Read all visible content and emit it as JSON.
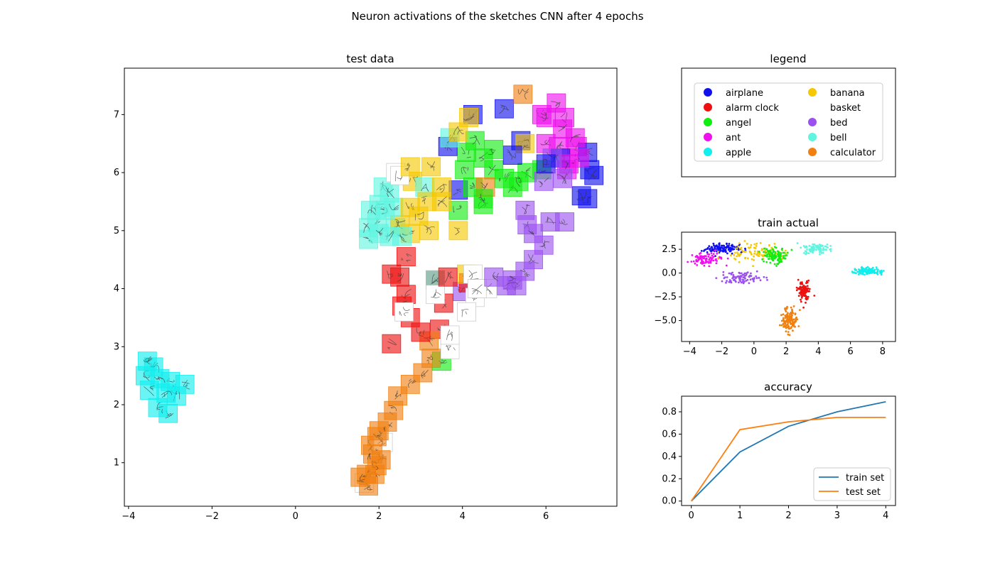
{
  "figure": {
    "title": "Neuron activations of the sketches CNN after 4 epochs"
  },
  "colors": {
    "airplane": "#1010ee",
    "alarm_clock": "#ee1010",
    "angel": "#10ee10",
    "ant": "#ee10ee",
    "apple": "#10eeee",
    "banana": "#f5c800",
    "basket": "#ffffff",
    "bed": "#9b50f0",
    "bell": "#60f5e0",
    "calculator": "#f08010",
    "train_line": "#1f77b4",
    "test_line": "#ff7f0e"
  },
  "chart_data": [
    {
      "type": "scatter",
      "title": "test data",
      "xlabel": "",
      "ylabel": "",
      "xlim": [
        -4.1,
        7.7
      ],
      "ylim": [
        0.25,
        7.8
      ],
      "xticks": [
        "−4",
        "−2",
        "0",
        "2",
        "4",
        "6"
      ],
      "yticks": [
        "1",
        "2",
        "3",
        "4",
        "5",
        "6",
        "7"
      ],
      "series": [
        {
          "name": "airplane",
          "color": "#1010ee",
          "points": [
            [
              4.25,
              7.0
            ],
            [
              5.4,
              6.55
            ],
            [
              6.0,
              6.15
            ],
            [
              6.35,
              6.25
            ],
            [
              7.0,
              6.35
            ],
            [
              7.05,
              6.05
            ],
            [
              7.15,
              5.95
            ],
            [
              7.0,
              5.55
            ],
            [
              6.85,
              5.6
            ],
            [
              5.0,
              7.1
            ],
            [
              3.65,
              6.45
            ],
            [
              3.9,
              5.7
            ],
            [
              5.2,
              6.3
            ]
          ]
        },
        {
          "name": "alarm clock",
          "color": "#ee1010",
          "points": [
            [
              2.65,
              4.55
            ],
            [
              2.3,
              4.25
            ],
            [
              2.5,
              4.2
            ],
            [
              2.65,
              3.9
            ],
            [
              2.55,
              3.7
            ],
            [
              3.35,
              4.15
            ],
            [
              3.65,
              4.2
            ],
            [
              4.15,
              4.1
            ],
            [
              3.55,
              3.75
            ],
            [
              2.75,
              3.5
            ],
            [
              3.45,
              3.3
            ],
            [
              2.3,
              3.05
            ],
            [
              3.0,
              3.25
            ]
          ]
        },
        {
          "name": "angel",
          "color": "#10ee10",
          "points": [
            [
              4.5,
              6.25
            ],
            [
              4.3,
              6.55
            ],
            [
              4.1,
              6.35
            ],
            [
              4.75,
              6.4
            ],
            [
              4.05,
              6.05
            ],
            [
              4.75,
              6.05
            ],
            [
              4.25,
              5.75
            ],
            [
              4.5,
              5.55
            ],
            [
              5.0,
              5.9
            ],
            [
              5.35,
              5.85
            ],
            [
              5.2,
              5.75
            ],
            [
              5.55,
              6.0
            ],
            [
              5.9,
              6.05
            ],
            [
              3.9,
              5.35
            ],
            [
              4.5,
              5.45
            ],
            [
              3.5,
              2.75
            ]
          ]
        },
        {
          "name": "ant",
          "color": "#ee10ee",
          "points": [
            [
              5.9,
              7.0
            ],
            [
              6.25,
              7.2
            ],
            [
              6.0,
              6.95
            ],
            [
              6.45,
              6.95
            ],
            [
              6.4,
              6.75
            ],
            [
              6.7,
              6.6
            ],
            [
              6.55,
              6.15
            ],
            [
              6.8,
              6.25
            ],
            [
              6.0,
              6.5
            ],
            [
              6.3,
              6.45
            ],
            [
              6.5,
              6.05
            ],
            [
              6.75,
              6.45
            ]
          ]
        },
        {
          "name": "apple",
          "color": "#10eeee",
          "points": [
            [
              -3.55,
              2.75
            ],
            [
              -3.4,
              2.65
            ],
            [
              -3.6,
              2.5
            ],
            [
              -3.25,
              2.45
            ],
            [
              -3.0,
              2.4
            ],
            [
              -2.65,
              2.35
            ],
            [
              -3.5,
              2.25
            ],
            [
              -3.1,
              2.2
            ],
            [
              -2.85,
              2.15
            ],
            [
              -3.3,
              1.95
            ],
            [
              -3.05,
              1.85
            ]
          ]
        },
        {
          "name": "banana",
          "color": "#f5c800",
          "points": [
            [
              2.75,
              6.1
            ],
            [
              2.8,
              5.85
            ],
            [
              3.25,
              6.1
            ],
            [
              4.15,
              6.95
            ],
            [
              3.9,
              6.7
            ],
            [
              3.5,
              5.75
            ],
            [
              3.15,
              5.5
            ],
            [
              3.5,
              5.5
            ],
            [
              2.75,
              5.4
            ],
            [
              2.95,
              5.25
            ],
            [
              2.5,
              5.1
            ],
            [
              3.2,
              5.0
            ],
            [
              2.75,
              4.95
            ],
            [
              4.1,
              4.25
            ],
            [
              5.5,
              6.5
            ],
            [
              3.9,
              5.0
            ]
          ]
        },
        {
          "name": "basket",
          "color": "#ffffff",
          "points": [
            [
              2.4,
              6.0
            ],
            [
              2.5,
              5.95
            ],
            [
              3.35,
              3.9
            ],
            [
              4.25,
              4.25
            ],
            [
              4.35,
              4.0
            ],
            [
              4.3,
              3.85
            ],
            [
              4.6,
              4.0
            ],
            [
              4.1,
              3.6
            ],
            [
              2.6,
              3.6
            ],
            [
              3.7,
              3.2
            ],
            [
              3.7,
              2.95
            ],
            [
              2.1,
              1.35
            ],
            [
              1.65,
              0.65
            ]
          ]
        },
        {
          "name": "bed",
          "color": "#9b50f0",
          "points": [
            [
              5.95,
              5.85
            ],
            [
              6.15,
              6.25
            ],
            [
              5.5,
              5.35
            ],
            [
              5.55,
              5.1
            ],
            [
              6.1,
              5.15
            ],
            [
              6.45,
              5.15
            ],
            [
              5.7,
              4.95
            ],
            [
              5.95,
              4.75
            ],
            [
              5.7,
              4.5
            ],
            [
              5.5,
              4.3
            ],
            [
              5.3,
              4.05
            ],
            [
              5.2,
              4.15
            ],
            [
              5.05,
              4.05
            ],
            [
              4.75,
              4.2
            ],
            [
              4.0,
              3.95
            ],
            [
              6.4,
              5.9
            ]
          ]
        },
        {
          "name": "bell",
          "color": "#60f5e0",
          "points": [
            [
              3.7,
              6.6
            ],
            [
              3.1,
              5.75
            ],
            [
              2.1,
              5.75
            ],
            [
              2.25,
              5.65
            ],
            [
              2.0,
              5.45
            ],
            [
              2.15,
              5.35
            ],
            [
              2.35,
              5.4
            ],
            [
              1.8,
              5.35
            ],
            [
              1.75,
              5.05
            ],
            [
              2.0,
              4.95
            ],
            [
              1.75,
              4.85
            ],
            [
              2.25,
              4.9
            ],
            [
              3.35,
              4.15
            ],
            [
              1.95,
              5.15
            ],
            [
              2.4,
              5.05
            ],
            [
              2.55,
              4.9
            ]
          ]
        },
        {
          "name": "calculator",
          "color": "#f08010",
          "points": [
            [
              5.45,
              7.35
            ],
            [
              4.55,
              5.75
            ],
            [
              3.2,
              3.1
            ],
            [
              3.25,
              2.8
            ],
            [
              3.05,
              2.55
            ],
            [
              2.75,
              2.35
            ],
            [
              2.45,
              2.15
            ],
            [
              2.35,
              1.9
            ],
            [
              2.2,
              1.7
            ],
            [
              2.0,
              1.55
            ],
            [
              1.95,
              1.45
            ],
            [
              1.8,
              1.3
            ],
            [
              1.85,
              1.15
            ],
            [
              2.05,
              1.05
            ],
            [
              1.95,
              0.95
            ],
            [
              1.7,
              0.8
            ],
            [
              1.55,
              0.75
            ],
            [
              1.9,
              0.8
            ],
            [
              1.75,
              0.6
            ]
          ]
        }
      ]
    },
    {
      "type": "legend",
      "title": "legend",
      "entries": [
        {
          "label": "airplane",
          "color": "#1010ee"
        },
        {
          "label": "alarm clock",
          "color": "#ee1010"
        },
        {
          "label": "angel",
          "color": "#10ee10"
        },
        {
          "label": "ant",
          "color": "#ee10ee"
        },
        {
          "label": "apple",
          "color": "#10eeee"
        },
        {
          "label": "banana",
          "color": "#f5c800"
        },
        {
          "label": "basket",
          "color": "#ffffff"
        },
        {
          "label": "bed",
          "color": "#9b50f0"
        },
        {
          "label": "bell",
          "color": "#60f5e0"
        },
        {
          "label": "calculator",
          "color": "#f08010"
        }
      ]
    },
    {
      "type": "scatter",
      "title": "train actual",
      "xlim": [
        -4.5,
        8.8
      ],
      "ylim": [
        -7.2,
        4.3
      ],
      "xticks": [
        "−4",
        "−2",
        "0",
        "2",
        "4",
        "6",
        "8"
      ],
      "yticks": [
        "2.5",
        "0.0",
        "−2.5",
        "−5.0"
      ],
      "clusters": [
        {
          "name": "airplane",
          "color": "#1010ee",
          "center": [
            -2.0,
            2.6
          ],
          "spread": [
            1.1,
            0.45
          ],
          "n": 120
        },
        {
          "name": "ant",
          "color": "#ee10ee",
          "center": [
            -3.0,
            1.5
          ],
          "spread": [
            0.9,
            0.55
          ],
          "n": 90
        },
        {
          "name": "bed",
          "color": "#9b50f0",
          "center": [
            -0.8,
            -0.5
          ],
          "spread": [
            1.3,
            0.55
          ],
          "n": 90
        },
        {
          "name": "banana",
          "color": "#f5c800",
          "center": [
            0.0,
            2.1
          ],
          "spread": [
            1.9,
            0.85
          ],
          "n": 100
        },
        {
          "name": "angel",
          "color": "#10ee10",
          "center": [
            1.3,
            1.8
          ],
          "spread": [
            0.7,
            0.7
          ],
          "n": 110
        },
        {
          "name": "bell",
          "color": "#60f5e0",
          "center": [
            3.8,
            2.6
          ],
          "spread": [
            0.8,
            0.5
          ],
          "n": 90
        },
        {
          "name": "alarm clock",
          "color": "#ee1010",
          "center": [
            3.1,
            -1.9
          ],
          "spread": [
            0.35,
            1.0
          ],
          "n": 110
        },
        {
          "name": "calculator",
          "color": "#f08010",
          "center": [
            2.2,
            -4.9
          ],
          "spread": [
            0.45,
            1.2
          ],
          "n": 130
        },
        {
          "name": "apple",
          "color": "#10eeee",
          "center": [
            7.1,
            0.2
          ],
          "spread": [
            0.75,
            0.35
          ],
          "n": 120
        }
      ]
    },
    {
      "type": "line",
      "title": "accuracy",
      "x": [
        0,
        1,
        2,
        3,
        4
      ],
      "xlim": [
        -0.2,
        4.2
      ],
      "ylim": [
        -0.04,
        0.94
      ],
      "xticks": [
        "0",
        "1",
        "2",
        "3",
        "4"
      ],
      "yticks": [
        "0.0",
        "0.2",
        "0.4",
        "0.6",
        "0.8"
      ],
      "series": [
        {
          "name": "train set",
          "color": "#1f77b4",
          "values": [
            0.0,
            0.44,
            0.67,
            0.8,
            0.89
          ]
        },
        {
          "name": "test set",
          "color": "#ff7f0e",
          "values": [
            0.0,
            0.64,
            0.71,
            0.75,
            0.75
          ]
        }
      ],
      "legend_position": "lower-right"
    }
  ]
}
